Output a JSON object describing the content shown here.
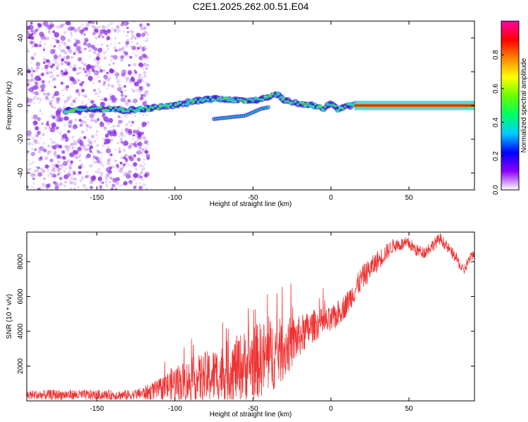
{
  "title": "C2E1.2025.262.00.51.E04",
  "colors": {
    "snr_line": "#ee3333",
    "ridge_line": "#cc0000",
    "scatter": "#8a2be2",
    "axis": "#000000",
    "background": "#ffffff"
  },
  "chart_data": [
    {
      "type": "heatmap",
      "name": "spectrogram",
      "xlabel": "Height of straight line (km)",
      "ylabel": "Frequency (Hz)",
      "xlim": [
        -195,
        92
      ],
      "ylim": [
        -50,
        50
      ],
      "xticks": [
        "-150",
        "-100",
        "-50",
        "0",
        "50"
      ],
      "xtick_values": [
        -150,
        -100,
        -50,
        0,
        50
      ],
      "yticks": [
        "-40",
        "-20",
        "0",
        "20",
        "40"
      ],
      "ytick_values": [
        -40,
        -20,
        0,
        20,
        40
      ],
      "noise_region_km": [
        -195,
        -125
      ],
      "constant_tone_region_km": [
        15,
        92
      ],
      "constant_tone_frequency_hz": 0,
      "ridge": {
        "x": [
          -170,
          -160,
          -150,
          -140,
          -130,
          -120,
          -110,
          -100,
          -90,
          -80,
          -70,
          -60,
          -50,
          -40,
          -35,
          -30,
          -20,
          -10,
          -5,
          0,
          5,
          10,
          15
        ],
        "y": [
          -3,
          -2,
          -2,
          -2,
          -3,
          -2,
          -1,
          0,
          2,
          4,
          4,
          3,
          3,
          5,
          7,
          3,
          1,
          0,
          -2,
          1,
          -3,
          0,
          0
        ]
      },
      "lower_branch": {
        "x": [
          -75,
          -65,
          -55,
          -50,
          -45,
          -40
        ],
        "y": [
          -8,
          -7,
          -6,
          -4,
          -2,
          -1
        ]
      },
      "colorbar": {
        "label": "Normalized spectral amplitude",
        "range": [
          0,
          1
        ],
        "ticks": [
          "0.0",
          "0.2",
          "0.4",
          "0.6",
          "0.8"
        ],
        "tick_values": [
          0.0,
          0.2,
          0.4,
          0.6,
          0.8
        ],
        "stops": [
          "#ffffff",
          "#8b00ff",
          "#0000ff",
          "#00ccff",
          "#00ff66",
          "#66ff00",
          "#ffff00",
          "#ff8800",
          "#ff0000",
          "#ff00aa"
        ]
      }
    },
    {
      "type": "line",
      "name": "snr",
      "xlabel": "Height of straight line (km)",
      "ylabel": "SNR (10 * v/v)",
      "xlim": [
        -195,
        92
      ],
      "ylim": [
        0,
        9700
      ],
      "xticks": [
        "-150",
        "-100",
        "-50",
        "0",
        "50"
      ],
      "xtick_values": [
        -150,
        -100,
        -50,
        0,
        50
      ],
      "yticks": [
        "2000",
        "4000",
        "6000",
        "8000"
      ],
      "ytick_values": [
        2000,
        4000,
        6000,
        8000
      ],
      "trend": {
        "x": [
          -195,
          -170,
          -150,
          -130,
          -120,
          -110,
          -100,
          -90,
          -80,
          -70,
          -60,
          -50,
          -40,
          -30,
          -20,
          -10,
          0,
          10,
          20,
          30,
          40,
          50,
          55,
          60,
          70,
          80,
          85,
          88,
          92
        ],
        "y": [
          300,
          320,
          300,
          300,
          400,
          600,
          900,
          1000,
          1200,
          1400,
          1700,
          2000,
          2300,
          2800,
          3600,
          4300,
          4500,
          5500,
          7000,
          8000,
          8900,
          9000,
          8600,
          8500,
          9300,
          8200,
          7400,
          8000,
          8500
        ]
      },
      "noise_amplitude": {
        "x": [
          -195,
          -125,
          -110,
          -100,
          -90,
          -80,
          -70,
          -60,
          -50,
          -40,
          -30,
          -20,
          -10,
          0,
          10,
          20,
          30,
          40,
          60,
          92
        ],
        "y": [
          300,
          300,
          600,
          1100,
          1300,
          1500,
          1700,
          1900,
          2200,
          2200,
          1800,
          1200,
          900,
          800,
          700,
          700,
          600,
          400,
          350,
          300
        ]
      }
    }
  ]
}
